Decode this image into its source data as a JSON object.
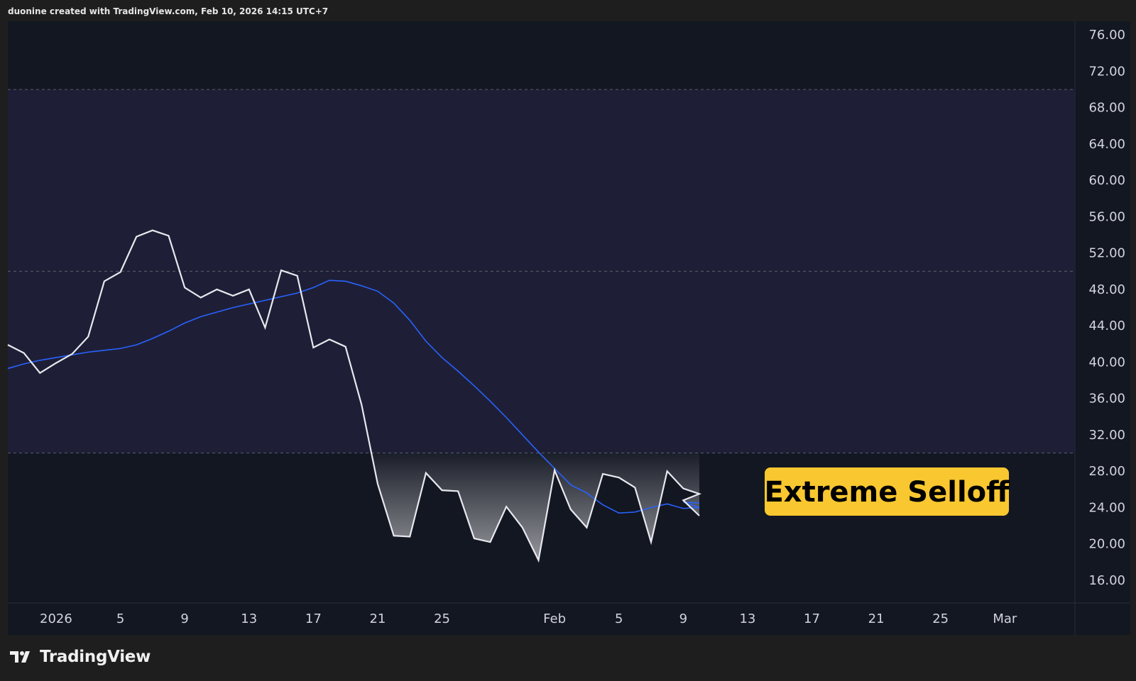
{
  "header": {
    "credit": "duonine created with TradingView.com, Feb 10, 2026 14:15 UTC+7"
  },
  "footer": {
    "brand": "TradingView"
  },
  "colors": {
    "background": "#131722",
    "band": "#1e1f36",
    "price_line": "#e8e8ee",
    "ma_line": "#2962ff",
    "axis_text": "#d1d4dc",
    "label_bg": "#f9c72f",
    "label_text": "#000000"
  },
  "chart_data": {
    "type": "line",
    "title": "",
    "xlabel": "",
    "ylabel": "",
    "ylim": [
      13.5,
      77.5
    ],
    "y_ticks": [
      76,
      72,
      68,
      64,
      60,
      56,
      52,
      48,
      44,
      40,
      36,
      32,
      28,
      24,
      20,
      16
    ],
    "y_tick_labels": [
      "76.00",
      "72.00",
      "68.00",
      "64.00",
      "60.00",
      "56.00",
      "52.00",
      "48.00",
      "44.00",
      "40.00",
      "36.00",
      "32.00",
      "28.00",
      "24.00",
      "20.00",
      "16.00"
    ],
    "x_range": [
      "2025-12-29",
      "2026-03-06"
    ],
    "x_ticks": [
      {
        "date": "2026-01-01",
        "label": "2026"
      },
      {
        "date": "2026-01-05",
        "label": "5"
      },
      {
        "date": "2026-01-09",
        "label": "9"
      },
      {
        "date": "2026-01-13",
        "label": "13"
      },
      {
        "date": "2026-01-17",
        "label": "17"
      },
      {
        "date": "2026-01-21",
        "label": "21"
      },
      {
        "date": "2026-01-25",
        "label": "25"
      },
      {
        "date": "2026-02-01",
        "label": "Feb"
      },
      {
        "date": "2026-02-05",
        "label": "5"
      },
      {
        "date": "2026-02-09",
        "label": "9"
      },
      {
        "date": "2026-02-13",
        "label": "13"
      },
      {
        "date": "2026-02-17",
        "label": "17"
      },
      {
        "date": "2026-02-21",
        "label": "21"
      },
      {
        "date": "2026-02-25",
        "label": "25"
      },
      {
        "date": "2026-03-01",
        "label": "Mar"
      }
    ],
    "levels": [
      70,
      50,
      30
    ],
    "band": [
      30,
      70
    ],
    "grid": false,
    "series": [
      {
        "x": [
          "2025-12-29",
          "2025-12-30",
          "2025-12-31",
          "2026-01-01",
          "2026-01-02",
          "2026-01-03",
          "2026-01-04",
          "2026-01-05",
          "2026-01-06",
          "2026-01-07",
          "2026-01-08",
          "2026-01-09",
          "2026-01-10",
          "2026-01-11",
          "2026-01-12",
          "2026-01-13",
          "2026-01-14",
          "2026-01-15",
          "2026-01-16",
          "2026-01-17",
          "2026-01-18",
          "2026-01-19",
          "2026-01-20",
          "2026-01-21",
          "2026-01-22",
          "2026-01-23",
          "2026-01-24",
          "2026-01-25",
          "2026-01-26",
          "2026-01-27",
          "2026-01-28",
          "2026-01-29",
          "2026-01-30",
          "2026-01-31",
          "2026-02-01",
          "2026-02-02",
          "2026-02-03",
          "2026-02-04",
          "2026-02-05",
          "2026-02-06",
          "2026-02-07",
          "2026-02-08",
          "2026-02-09",
          "2026-02-10"
        ],
        "values": [
          41.9,
          41.0,
          38.8,
          39.9,
          40.9,
          42.8,
          48.9,
          49.9,
          53.8,
          54.5,
          53.9,
          48.2,
          47.1,
          48.0,
          47.3,
          48.0,
          43.8,
          50.1,
          49.5,
          41.6,
          42.5,
          41.7,
          35.3,
          26.6,
          20.9,
          20.8,
          27.8,
          25.9,
          25.8,
          20.6,
          20.2,
          24.1,
          21.8,
          18.2,
          28.1,
          23.8,
          21.8,
          27.7,
          27.3,
          26.2,
          20.2,
          28.0,
          26.1,
          25.5
        ]
      },
      {
        "x": [
          "2025-12-29",
          "2025-12-30",
          "2025-12-31",
          "2026-01-01",
          "2026-01-02",
          "2026-01-03",
          "2026-01-04",
          "2026-01-05",
          "2026-01-06",
          "2026-01-07",
          "2026-01-08",
          "2026-01-09",
          "2026-01-10",
          "2026-01-11",
          "2026-01-12",
          "2026-01-13",
          "2026-01-14",
          "2026-01-15",
          "2026-01-16",
          "2026-01-17",
          "2026-01-18",
          "2026-01-19",
          "2026-01-20",
          "2026-01-21",
          "2026-01-22",
          "2026-01-23",
          "2026-01-24",
          "2026-01-25",
          "2026-01-26",
          "2026-01-27",
          "2026-01-28",
          "2026-01-29",
          "2026-01-30",
          "2026-01-31",
          "2026-02-01",
          "2026-02-02",
          "2026-02-03",
          "2026-02-04",
          "2026-02-05",
          "2026-02-06",
          "2026-02-07",
          "2026-02-08",
          "2026-02-09",
          "2026-02-10"
        ],
        "values": [
          39.3,
          39.8,
          40.2,
          40.5,
          40.8,
          41.1,
          41.3,
          41.5,
          41.9,
          42.6,
          43.4,
          44.3,
          45.0,
          45.5,
          46.0,
          46.4,
          46.8,
          47.2,
          47.6,
          48.2,
          49.0,
          48.9,
          48.4,
          47.8,
          46.5,
          44.6,
          42.3,
          40.5,
          39.0,
          37.4,
          35.7,
          33.9,
          32.0,
          30.1,
          28.3,
          26.5,
          25.6,
          24.3,
          23.4,
          23.5,
          24.0,
          24.4,
          23.9,
          24.0
        ]
      }
    ],
    "extra_points": {
      "x": [
        "2026-02-09",
        "2026-02-10"
      ],
      "price": [
        24.8,
        23.1
      ],
      "ma": [
        24.6,
        24.5
      ]
    },
    "annotations": [
      {
        "text": "Extreme Selloff"
      }
    ]
  }
}
